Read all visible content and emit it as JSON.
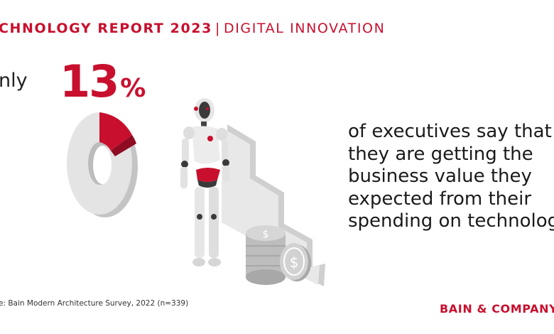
{
  "header": {
    "title": "CHNOLOGY REPORT 2023",
    "separator": "|",
    "subtitle": "DIGITAL INNOVATION"
  },
  "stat": {
    "lead": "nly",
    "value": "13",
    "unit": "%",
    "fraction": 0.13
  },
  "message": {
    "lines": [
      "of executives say that",
      "they are getting the",
      "business value they",
      "expected from their",
      "spending on technolog"
    ]
  },
  "source": "e: Bain Modern Architecture Survey, 2022 (n=339)",
  "logo": "BAIN & COMPANY",
  "colors": {
    "brand_red": "#c8102e",
    "gray": "#dcdcdc"
  }
}
